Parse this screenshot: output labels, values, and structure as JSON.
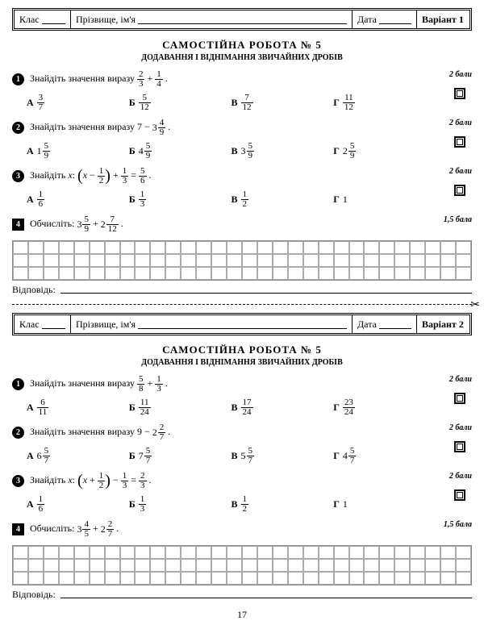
{
  "labels": {
    "class": "Клас",
    "name": "Прізвище, ім'я",
    "date": "Дата",
    "variant1": "Варіант 1",
    "variant2": "Варіант 2",
    "answer": "Відповідь:",
    "page": "17"
  },
  "title": "САМОСТІЙНА РОБОТА № 5",
  "subtitle": "ДОДАВАННЯ І ВІДНІМАННЯ ЗВИЧАЙНИХ ДРОБІВ",
  "pts": {
    "p2": "2 бали",
    "p15": "1,5 бала"
  },
  "v1": {
    "q1": {
      "text": "Знайдіть значення виразу",
      "a": {
        "n": "3",
        "d": "7"
      },
      "b": {
        "n": "5",
        "d": "12"
      },
      "c": {
        "n": "7",
        "d": "12"
      },
      "d": {
        "n": "11",
        "d": "12"
      }
    },
    "q2": {
      "text": "Знайдіть значення виразу",
      "a": {
        "w": "1",
        "n": "5",
        "d": "9"
      },
      "b": {
        "w": "4",
        "n": "5",
        "d": "9"
      },
      "c": {
        "w": "3",
        "n": "5",
        "d": "9"
      },
      "d": {
        "w": "2",
        "n": "5",
        "d": "9"
      }
    },
    "q3": {
      "text": "Знайдіть",
      "a": {
        "n": "1",
        "d": "6"
      },
      "b": {
        "n": "1",
        "d": "3"
      },
      "c": {
        "n": "1",
        "d": "2"
      },
      "d": "1"
    },
    "q4": {
      "text": "Обчисліть:"
    }
  },
  "v2": {
    "q1": {
      "text": "Знайдіть значення виразу",
      "a": {
        "n": "6",
        "d": "11"
      },
      "b": {
        "n": "11",
        "d": "24"
      },
      "c": {
        "n": "17",
        "d": "24"
      },
      "d": {
        "n": "23",
        "d": "24"
      }
    },
    "q2": {
      "text": "Знайдіть значення виразу",
      "a": {
        "w": "6",
        "n": "5",
        "d": "7"
      },
      "b": {
        "w": "7",
        "n": "5",
        "d": "7"
      },
      "c": {
        "w": "5",
        "n": "5",
        "d": "7"
      },
      "d": {
        "w": "4",
        "n": "5",
        "d": "7"
      }
    },
    "q3": {
      "text": "Знайдіть",
      "a": {
        "n": "1",
        "d": "6"
      },
      "b": {
        "n": "1",
        "d": "3"
      },
      "c": {
        "n": "1",
        "d": "2"
      },
      "d": "1"
    },
    "q4": {
      "text": "Обчисліть:"
    }
  },
  "letters": {
    "a": "А",
    "b": "Б",
    "c": "В",
    "d": "Г"
  }
}
